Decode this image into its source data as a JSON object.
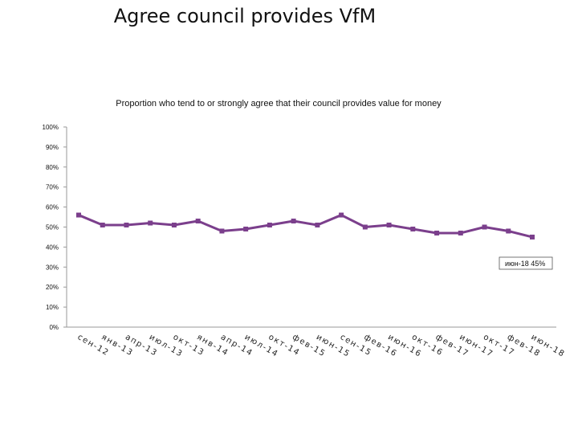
{
  "slide": {
    "title": "Agree council provides VfM"
  },
  "chart_data": {
    "type": "line",
    "title": "Proportion who tend to or strongly agree that their council provides value for money",
    "xlabel": "",
    "ylabel": "",
    "categories": [
      "сен-12",
      "янв-13",
      "апр-13",
      "июл-13",
      "окт-13",
      "янв-14",
      "апр-14",
      "июл-14",
      "окт-14",
      "фев-15",
      "июн-15",
      "сен-15",
      "фев-16",
      "июн-16",
      "окт-16",
      "фев-17",
      "июн-17",
      "окт-17",
      "фев-18",
      "июн-18"
    ],
    "series": [
      {
        "values": [
          56,
          51,
          51,
          52,
          51,
          53,
          48,
          49,
          51,
          53,
          51,
          56,
          50,
          51,
          49,
          47,
          47,
          50,
          48,
          45
        ]
      }
    ],
    "ylim": [
      0,
      100
    ],
    "yticks": [
      "0%",
      "10%",
      "20%",
      "30%",
      "40%",
      "50%",
      "60%",
      "70%",
      "80%",
      "90%",
      "100%"
    ],
    "grid": false,
    "legend": "none",
    "line_color": "#7b3f8c",
    "data_label": {
      "text": "июн-18 45%"
    }
  }
}
